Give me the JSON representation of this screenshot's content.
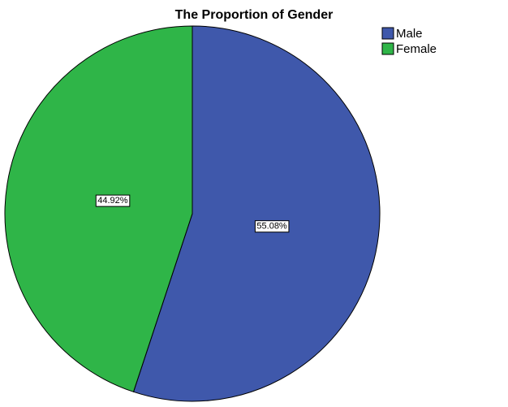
{
  "chart_data": {
    "type": "pie",
    "title": "The Proportion of Gender",
    "categories": [
      "Male",
      "Female"
    ],
    "values": [
      55.08,
      44.92
    ],
    "value_labels": [
      "55.08%",
      "44.92%"
    ],
    "colors": [
      "#3f58ab",
      "#2fb548"
    ],
    "legend": "top-right"
  }
}
